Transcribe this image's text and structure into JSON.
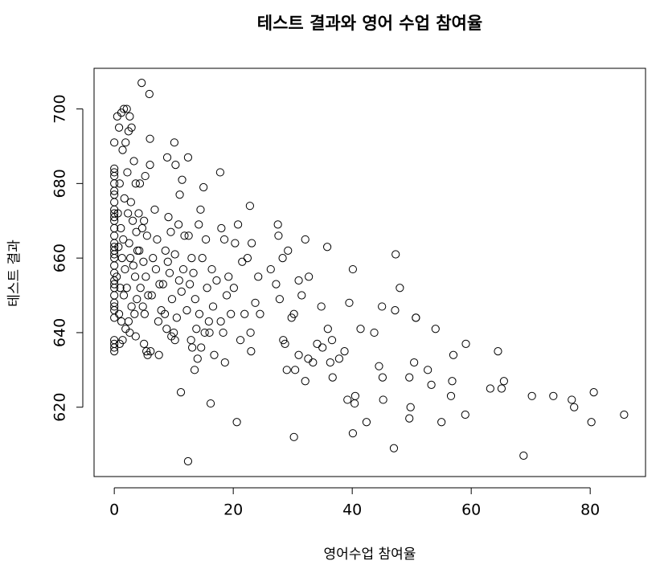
{
  "chart_data": {
    "type": "scatter",
    "title": "테스트 결과와 영어 수업 참여율",
    "x_label": "영어수업 참여율",
    "y_label": "테스트 결과",
    "color": "#000000",
    "grid": false,
    "xlim": [
      -3.4,
      89.3
    ],
    "ylim": [
      601.4,
      710.9
    ],
    "xticks": [
      0,
      20,
      40,
      60,
      80
    ],
    "yticks": [
      620,
      640,
      660,
      680,
      700
    ],
    "x": [
      0,
      0,
      0,
      0,
      0,
      0,
      0,
      0,
      0,
      0,
      0,
      0,
      0,
      0,
      0,
      0,
      0,
      0,
      0,
      0,
      0,
      0,
      0,
      0,
      0,
      0,
      0,
      0,
      0,
      0,
      0,
      0,
      0,
      0.5,
      0.8,
      1.2,
      1.6,
      1.9,
      1.4,
      0.9,
      1.7,
      0.6,
      1.1,
      1.5,
      0.7,
      1.3,
      1.8,
      0.4,
      1.0,
      1.6,
      0.8,
      1.2,
      1.9,
      1.4,
      0.9,
      2.1,
      2.6,
      2.9,
      2.4,
      3.3,
      2.2,
      3.6,
      2.8,
      2.3,
      3.1,
      3.7,
      2.5,
      3.9,
      2.7,
      3.2,
      3.5,
      2.1,
      3.8,
      2.9,
      3.4,
      2.4,
      2.6,
      3.6,
      4.6,
      5.9,
      6.0,
      6.0,
      5.2,
      4.3,
      4.1,
      5.0,
      4.7,
      5.5,
      4.2,
      4.9,
      5.3,
      4.4,
      5.7,
      4.8,
      5.1,
      5.0,
      5.4,
      5.6,
      6.8,
      7.2,
      6.5,
      7.0,
      7.6,
      6.3,
      7.9,
      7.4,
      6.1,
      7.5,
      8.9,
      9.1,
      9.5,
      8.6,
      9.0,
      9.3,
      8.2,
      9.7,
      8.5,
      8.8,
      9.6,
      10.1,
      10.3,
      11.4,
      11.0,
      10.8,
      11.8,
      10.2,
      11.6,
      10.9,
      11.3,
      10.5,
      10.0,
      10.2,
      11.2,
      12.4,
      12.5,
      13.0,
      13.3,
      12.7,
      13.6,
      12.2,
      13.8,
      12.9,
      13.1,
      13.5,
      12.4,
      15.0,
      14.5,
      14.2,
      15.4,
      14.8,
      15.6,
      14.3,
      15.9,
      15.2,
      14.6,
      14.0,
      17.8,
      16.4,
      17.2,
      16.6,
      17.9,
      16.0,
      16.8,
      16.2,
      18.0,
      18.5,
      19.2,
      18.9,
      19.6,
      18.3,
      18.6,
      20.8,
      20.3,
      21.5,
      20.1,
      21.9,
      21.2,
      20.6,
      22.8,
      23.1,
      22.4,
      24.2,
      23.7,
      24.5,
      22.9,
      23.0,
      27.5,
      27.6,
      29.2,
      28.3,
      26.3,
      27.2,
      27.8,
      29.8,
      28.4,
      28.7,
      29.0,
      30.2,
      32.1,
      32.7,
      31.0,
      31.5,
      30.2,
      34.1,
      31.0,
      32.6,
      33.4,
      30.4,
      32.1,
      35.8,
      34.8,
      35.9,
      36.6,
      35.0,
      37.8,
      36.3,
      36.7,
      39.2,
      38.7,
      40.1,
      39.5,
      41.4,
      43.7,
      40.5,
      40.4,
      40.1,
      42.4,
      44.5,
      47.3,
      48.0,
      45.0,
      47.2,
      50.7,
      45.1,
      45.2,
      49.6,
      47.0,
      50.7,
      50.4,
      52.7,
      49.6,
      53.3,
      49.8,
      55.0,
      54.0,
      59.1,
      57.0,
      56.8,
      56.6,
      59.0,
      64.5,
      65.5,
      63.2,
      65.1,
      68.8,
      70.2,
      73.8,
      76.9,
      77.3,
      80.6,
      80.2,
      85.7
    ],
    "values": [
      635,
      636,
      637,
      638,
      644,
      646,
      647,
      648,
      650,
      652,
      653,
      654,
      656,
      658,
      660,
      661,
      662,
      663,
      664,
      666,
      668,
      670,
      671,
      672,
      673,
      675,
      677,
      678,
      680,
      682,
      683,
      684,
      691,
      698,
      695,
      699,
      700,
      691,
      689,
      680,
      676,
      672,
      668,
      665,
      663,
      660,
      657,
      655,
      652,
      650,
      645,
      643,
      641,
      638,
      637,
      700,
      698,
      695,
      694,
      686,
      683,
      680,
      675,
      672,
      670,
      667,
      664,
      662,
      660,
      658,
      655,
      652,
      649,
      647,
      645,
      643,
      640,
      639,
      707,
      704,
      692,
      685,
      682,
      680,
      672,
      670,
      668,
      666,
      662,
      659,
      655,
      652,
      650,
      647,
      645,
      637,
      635,
      634,
      673,
      665,
      660,
      657,
      653,
      650,
      646,
      643,
      635,
      634,
      687,
      671,
      667,
      662,
      659,
      656,
      653,
      649,
      645,
      641,
      639,
      691,
      685,
      681,
      677,
      669,
      666,
      661,
      657,
      654,
      651,
      644,
      640,
      638,
      624,
      687,
      666,
      660,
      656,
      653,
      649,
      646,
      641,
      638,
      636,
      630,
      605.5,
      679,
      673,
      669,
      665,
      660,
      652,
      645,
      643,
      640,
      636,
      633,
      683,
      657,
      654,
      647,
      643,
      640,
      634,
      621,
      668,
      665,
      655,
      650,
      645,
      640,
      632,
      669,
      664,
      659,
      652,
      645,
      638,
      616,
      674,
      664,
      660,
      655,
      648,
      645,
      640,
      635,
      669,
      666,
      662,
      660,
      657,
      653,
      649,
      644,
      638,
      637,
      630,
      612,
      665,
      655,
      654,
      650,
      645,
      637,
      634,
      633,
      632,
      630,
      627,
      663,
      647,
      641,
      638,
      636,
      633,
      632,
      628,
      622,
      635,
      657,
      648,
      641,
      640,
      623,
      621,
      613,
      616,
      631,
      661,
      652,
      647,
      646,
      644,
      628,
      622,
      617,
      609,
      644,
      632,
      630,
      628,
      626,
      620,
      616,
      641,
      637,
      634,
      627,
      623,
      618,
      635,
      627,
      625,
      625,
      607,
      623,
      623,
      622,
      620,
      624,
      616,
      618
    ]
  }
}
